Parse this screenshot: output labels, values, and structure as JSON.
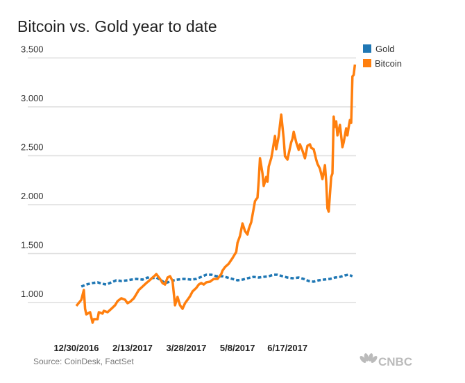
{
  "chart_data": {
    "type": "line",
    "title": "Bitcoin vs. Gold year to date",
    "source": "Source: CoinDesk, FactSet",
    "logo": "CNBC",
    "xlabel": "",
    "ylabel": "",
    "x_unit": "days since 12/30/2016",
    "x_ticks": [
      {
        "day": 0,
        "label": "12/30/2016"
      },
      {
        "day": 45,
        "label": "2/13/2017"
      },
      {
        "day": 88,
        "label": "3/28/2017"
      },
      {
        "day": 129,
        "label": "5/8/2017"
      },
      {
        "day": 169,
        "label": "6/17/2017"
      }
    ],
    "y_ticks": [
      {
        "value": 1000,
        "label": "1.000"
      },
      {
        "value": 1500,
        "label": "1.500"
      },
      {
        "value": 2000,
        "label": "2.000"
      },
      {
        "value": 2500,
        "label": "2.500"
      },
      {
        "value": 3000,
        "label": "3.000"
      },
      {
        "value": 3500,
        "label": "3.500"
      }
    ],
    "grid": true,
    "legend_position": "top-right",
    "series": [
      {
        "name": "Gold",
        "color": "#1f77b4",
        "style": "dashed",
        "x": [
          4,
          8,
          13,
          17,
          21,
          24,
          28,
          32,
          36,
          41,
          44,
          48,
          53,
          57,
          60,
          64,
          68,
          71,
          75,
          78,
          81,
          86,
          92,
          96,
          100,
          104,
          108,
          112,
          117,
          121,
          125,
          129,
          133,
          137,
          142,
          146,
          150,
          154,
          158,
          161,
          165,
          169,
          173,
          178,
          182,
          186,
          190,
          194,
          198,
          203,
          207,
          211,
          215,
          218,
          221
        ],
        "y": [
          1163,
          1184,
          1199,
          1206,
          1191,
          1184,
          1206,
          1227,
          1220,
          1227,
          1234,
          1241,
          1234,
          1255,
          1248,
          1255,
          1227,
          1199,
          1213,
          1227,
          1234,
          1241,
          1234,
          1241,
          1262,
          1284,
          1284,
          1269,
          1269,
          1255,
          1241,
          1227,
          1234,
          1248,
          1262,
          1255,
          1262,
          1269,
          1284,
          1284,
          1269,
          1255,
          1248,
          1255,
          1241,
          1220,
          1213,
          1227,
          1234,
          1241,
          1255,
          1262,
          1277,
          1284,
          1269
        ]
      },
      {
        "name": "Bitcoin",
        "color": "#ff7f0e",
        "style": "solid",
        "x": [
          0,
          4,
          6,
          7,
          8,
          11,
          13,
          14,
          17,
          18,
          21,
          22,
          25,
          28,
          31,
          33,
          36,
          39,
          41,
          43,
          46,
          48,
          50,
          53,
          56,
          58,
          61,
          63,
          64,
          67,
          69,
          71,
          73,
          75,
          77,
          79,
          81,
          83,
          85,
          87,
          89,
          91,
          93,
          96,
          98,
          100,
          102,
          104,
          107,
          110,
          113,
          116,
          117,
          119,
          122,
          125,
          128,
          129,
          131,
          133,
          135,
          137,
          138,
          140,
          142,
          143,
          144,
          145,
          146,
          147,
          149,
          150,
          152,
          153,
          154,
          156,
          157,
          159,
          160,
          162,
          163,
          164,
          166,
          167,
          169,
          171,
          172,
          173,
          174,
          176,
          178,
          179,
          181,
          183,
          185,
          187,
          188,
          190,
          192,
          193,
          195,
          197,
          198,
          199,
          200,
          201,
          202,
          204,
          205,
          206,
          207,
          208,
          209,
          211,
          213,
          214,
          216,
          217,
          218,
          219,
          220,
          221,
          222,
          223
        ],
        "y": [
          965,
          1028,
          1128,
          936,
          879,
          901,
          794,
          830,
          830,
          901,
          887,
          915,
          901,
          936,
          972,
          1014,
          1043,
          1028,
          993,
          1007,
          1043,
          1085,
          1128,
          1163,
          1199,
          1220,
          1255,
          1277,
          1291,
          1241,
          1199,
          1184,
          1255,
          1269,
          1220,
          972,
          1057,
          972,
          936,
          993,
          1028,
          1064,
          1113,
          1149,
          1184,
          1199,
          1184,
          1206,
          1213,
          1241,
          1241,
          1291,
          1326,
          1362,
          1397,
          1454,
          1518,
          1610,
          1681,
          1808,
          1730,
          1695,
          1752,
          1822,
          1964,
          2035,
          2056,
          2071,
          2248,
          2475,
          2319,
          2191,
          2283,
          2234,
          2390,
          2475,
          2546,
          2702,
          2567,
          2702,
          2815,
          2921,
          2673,
          2496,
          2461,
          2581,
          2638,
          2673,
          2744,
          2638,
          2560,
          2617,
          2553,
          2475,
          2602,
          2617,
          2581,
          2567,
          2461,
          2418,
          2368,
          2262,
          2333,
          2404,
          2234,
          1964,
          1929,
          2283,
          2319,
          2900,
          2794,
          2851,
          2709,
          2815,
          2588,
          2638,
          2780,
          2709,
          2794,
          2865,
          2836,
          3311,
          3326,
          3432
        ]
      }
    ]
  }
}
